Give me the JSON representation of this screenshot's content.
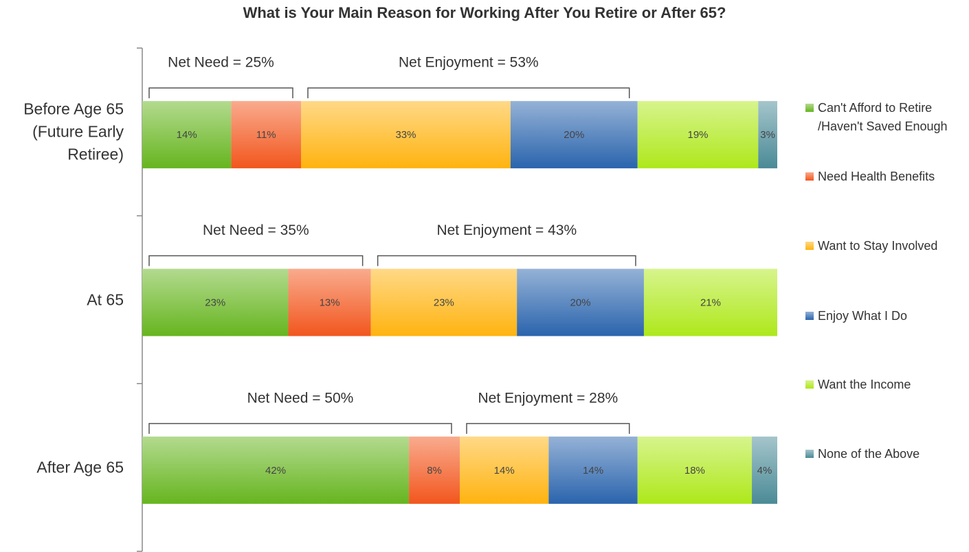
{
  "chart_data": {
    "type": "stacked_bar_horizontal",
    "title": "What is Your Main Reason for Working After You Retire or After 65?",
    "categories": [
      "Before Age 65 (Future Early Retiree)",
      "At 65",
      "After Age 65"
    ],
    "xlim": [
      0,
      100
    ],
    "series": [
      {
        "name": "Can't Afford to Retire /Haven't Saved Enough",
        "color": "#66b51f",
        "values": [
          14,
          23,
          42
        ],
        "value_labels": [
          "14%",
          "23%",
          "42%"
        ]
      },
      {
        "name": "Need Health Benefits",
        "color": "#f2561d",
        "values": [
          11,
          13,
          8
        ],
        "value_labels": [
          "11%",
          "13%",
          "8%"
        ]
      },
      {
        "name": "Want to Stay Involved",
        "color": "#ffb30f",
        "values": [
          33,
          23,
          14
        ],
        "value_labels": [
          "33%",
          "23%",
          "14%"
        ]
      },
      {
        "name": "Enjoy What I Do",
        "color": "#2a64ad",
        "values": [
          20,
          20,
          14
        ],
        "value_labels": [
          "20%",
          "20%",
          "14%"
        ]
      },
      {
        "name": "Want the Income",
        "color": "#aee81a",
        "values": [
          19,
          21,
          18
        ],
        "value_labels": [
          "19%",
          "21%",
          "18%"
        ]
      },
      {
        "name": "None of the Above",
        "color": "#4a8a96",
        "values": [
          3,
          null,
          4
        ],
        "value_labels": [
          "3%",
          null,
          "4%"
        ]
      }
    ],
    "net_labels": [
      [
        "Net Need = 25%",
        "Net Enjoyment = 53%"
      ],
      [
        "Net Need = 35%",
        "Net Enjoyment = 43%"
      ],
      [
        "Net Need = 50%",
        "Net Enjoyment = 28%"
      ]
    ],
    "legend": "right"
  }
}
